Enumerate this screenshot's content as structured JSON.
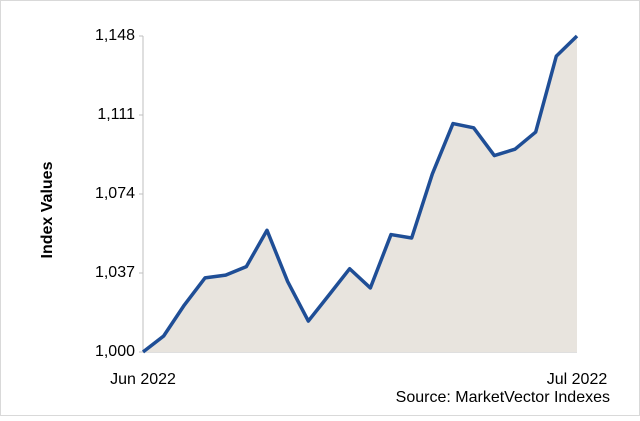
{
  "chart_data": {
    "type": "area",
    "ylabel": "Index Values",
    "source": "Source: MarketVector Indexes",
    "categories": [
      "Jun 2022",
      null,
      null,
      null,
      null,
      null,
      null,
      null,
      null,
      null,
      null,
      null,
      null,
      null,
      null,
      null,
      null,
      null,
      null,
      null,
      null,
      "Jul 2022"
    ],
    "series": [
      {
        "color": "#1f4e96",
        "fill": "#e8e4de",
        "values": [
          1000,
          1007.5,
          1022,
          1034.7,
          1036,
          1040,
          1057,
          1033,
          1014.5,
          1026.7,
          1039,
          1030,
          1055,
          1053.4,
          1083.4,
          1107,
          1105,
          1092,
          1095,
          1103,
          1138.6,
          1148
        ]
      }
    ],
    "ylim": [
      1000,
      1148
    ],
    "yticks": [
      {
        "value": 1000,
        "label": "1,000"
      },
      {
        "value": 1037,
        "label": "1,037"
      },
      {
        "value": 1074,
        "label": "1,074"
      },
      {
        "value": 1111,
        "label": "1,111"
      },
      {
        "value": 1148,
        "label": "1,148"
      }
    ],
    "grid": false
  }
}
